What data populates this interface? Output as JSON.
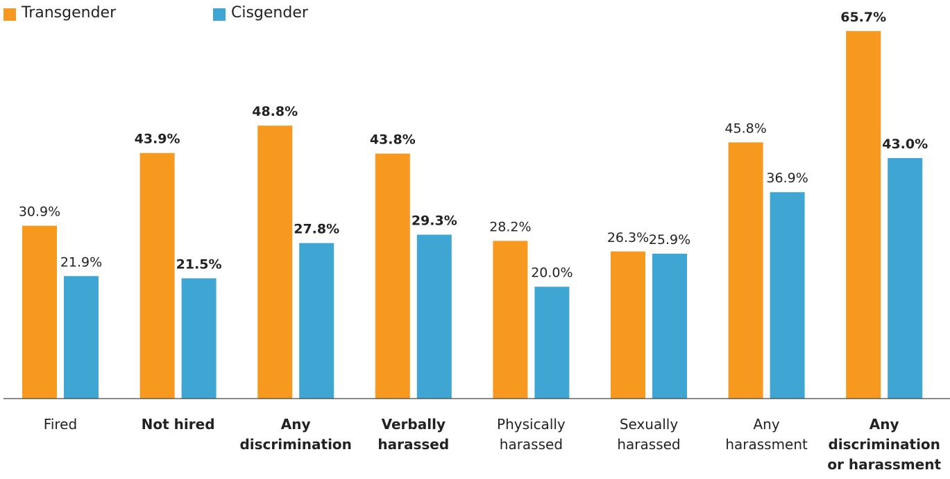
{
  "chart_data": {
    "type": "bar",
    "categories": [
      "Fired",
      "Not hired",
      "Any\ndiscrimination",
      "Verbally\nharassed",
      "Physically\nharassed",
      "Sexually\nharassed",
      "Any\nharassment",
      "Any\ndiscrimination\nor harassment"
    ],
    "emphasis": [
      false,
      true,
      true,
      true,
      false,
      false,
      false,
      true
    ],
    "series": [
      {
        "name": "Transgender",
        "color": "#f7991f",
        "values": [
          30.9,
          43.9,
          48.8,
          43.8,
          28.2,
          26.3,
          45.8,
          65.7
        ],
        "value_labels": [
          "30.9%",
          "43.9%",
          "48.8%",
          "43.8%",
          "28.2%",
          "26.3%",
          "45.8%",
          "65.7%"
        ]
      },
      {
        "name": "Cisgender",
        "color": "#3fa5d3",
        "values": [
          21.9,
          21.5,
          27.8,
          29.3,
          20.0,
          25.9,
          36.9,
          43.0
        ],
        "value_labels": [
          "21.9%",
          "21.5%",
          "27.8%",
          "29.3%",
          "20.0%",
          "25.9%",
          "36.9%",
          "43.0%"
        ]
      }
    ],
    "ylim": [
      0,
      70
    ],
    "legend": "top-left"
  }
}
